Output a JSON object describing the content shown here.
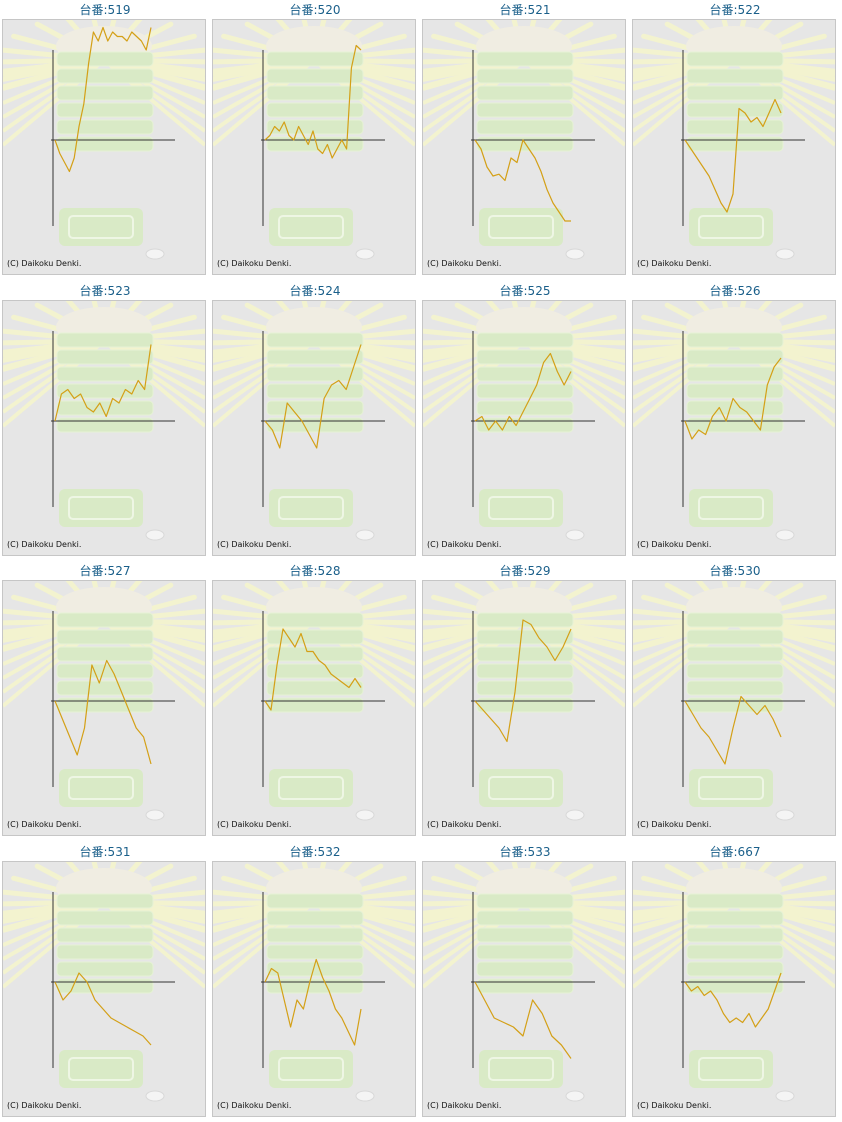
{
  "label_prefix": "台番:",
  "copyright": "(C) Daikoku Denki.",
  "colors": {
    "line": "#d4a017",
    "axis": "#333333",
    "background": "#e6e6e6",
    "frame_border": "#c6c6c6",
    "title": "#1a5f8a"
  },
  "chart_data": [
    {
      "type": "line",
      "title": "519",
      "y": [
        0,
        -15,
        -25,
        -35,
        -20,
        15,
        40,
        85,
        120,
        110,
        125,
        110,
        120,
        115,
        115,
        110,
        120,
        115,
        110,
        100,
        125
      ]
    },
    {
      "type": "line",
      "title": "520",
      "y": [
        0,
        5,
        15,
        10,
        20,
        5,
        0,
        15,
        5,
        -5,
        10,
        -10,
        -15,
        -5,
        -20,
        -10,
        0,
        -10,
        80,
        105,
        100
      ]
    },
    {
      "type": "line",
      "title": "521",
      "y": [
        0,
        -10,
        -30,
        -40,
        -38,
        -45,
        -20,
        -25,
        0,
        -10,
        -20,
        -35,
        -55,
        -70,
        -80,
        -90,
        -90
      ]
    },
    {
      "type": "line",
      "title": "522",
      "y": [
        0,
        -10,
        -20,
        -30,
        -40,
        -55,
        -70,
        -80,
        -60,
        35,
        30,
        20,
        25,
        15,
        30,
        45,
        30
      ]
    },
    {
      "type": "line",
      "title": "523",
      "y": [
        0,
        30,
        35,
        25,
        30,
        15,
        10,
        20,
        5,
        25,
        20,
        35,
        30,
        45,
        35,
        85
      ]
    },
    {
      "type": "line",
      "title": "524",
      "y": [
        0,
        -10,
        -30,
        20,
        10,
        0,
        -15,
        -30,
        25,
        40,
        45,
        35,
        60,
        85
      ]
    },
    {
      "type": "line",
      "title": "525",
      "y": [
        0,
        5,
        -10,
        0,
        -10,
        5,
        -5,
        10,
        25,
        40,
        65,
        75,
        55,
        40,
        55
      ]
    },
    {
      "type": "line",
      "title": "526",
      "y": [
        0,
        -20,
        -10,
        -15,
        5,
        15,
        0,
        25,
        15,
        10,
        0,
        -10,
        40,
        60,
        70
      ]
    },
    {
      "type": "line",
      "title": "527",
      "y": [
        0,
        -20,
        -40,
        -60,
        -30,
        40,
        20,
        45,
        30,
        10,
        -10,
        -30,
        -40,
        -70
      ]
    },
    {
      "type": "line",
      "title": "528",
      "y": [
        0,
        -10,
        40,
        80,
        70,
        60,
        75,
        55,
        55,
        45,
        40,
        30,
        25,
        20,
        15,
        25,
        15
      ]
    },
    {
      "type": "line",
      "title": "529",
      "y": [
        0,
        -10,
        -20,
        -30,
        -45,
        10,
        90,
        85,
        70,
        60,
        45,
        60,
        80
      ]
    },
    {
      "type": "line",
      "title": "530",
      "y": [
        0,
        -15,
        -30,
        -40,
        -55,
        -70,
        -30,
        5,
        -5,
        -15,
        -5,
        -20,
        -40
      ]
    },
    {
      "type": "line",
      "title": "531",
      "y": [
        0,
        -20,
        -10,
        10,
        0,
        -20,
        -30,
        -40,
        -45,
        -50,
        -55,
        -60,
        -70
      ]
    },
    {
      "type": "line",
      "title": "532",
      "y": [
        0,
        15,
        10,
        -20,
        -50,
        -20,
        -30,
        0,
        25,
        5,
        -10,
        -30,
        -40,
        -55,
        -70,
        -30
      ]
    },
    {
      "type": "line",
      "title": "533",
      "y": [
        0,
        -20,
        -40,
        -45,
        -50,
        -60,
        -20,
        -35,
        -60,
        -70,
        -85
      ]
    },
    {
      "type": "line",
      "title": "667",
      "y": [
        0,
        -10,
        -5,
        -15,
        -10,
        -20,
        -35,
        -45,
        -40,
        -45,
        -35,
        -50,
        -40,
        -30,
        -10,
        10
      ]
    }
  ]
}
